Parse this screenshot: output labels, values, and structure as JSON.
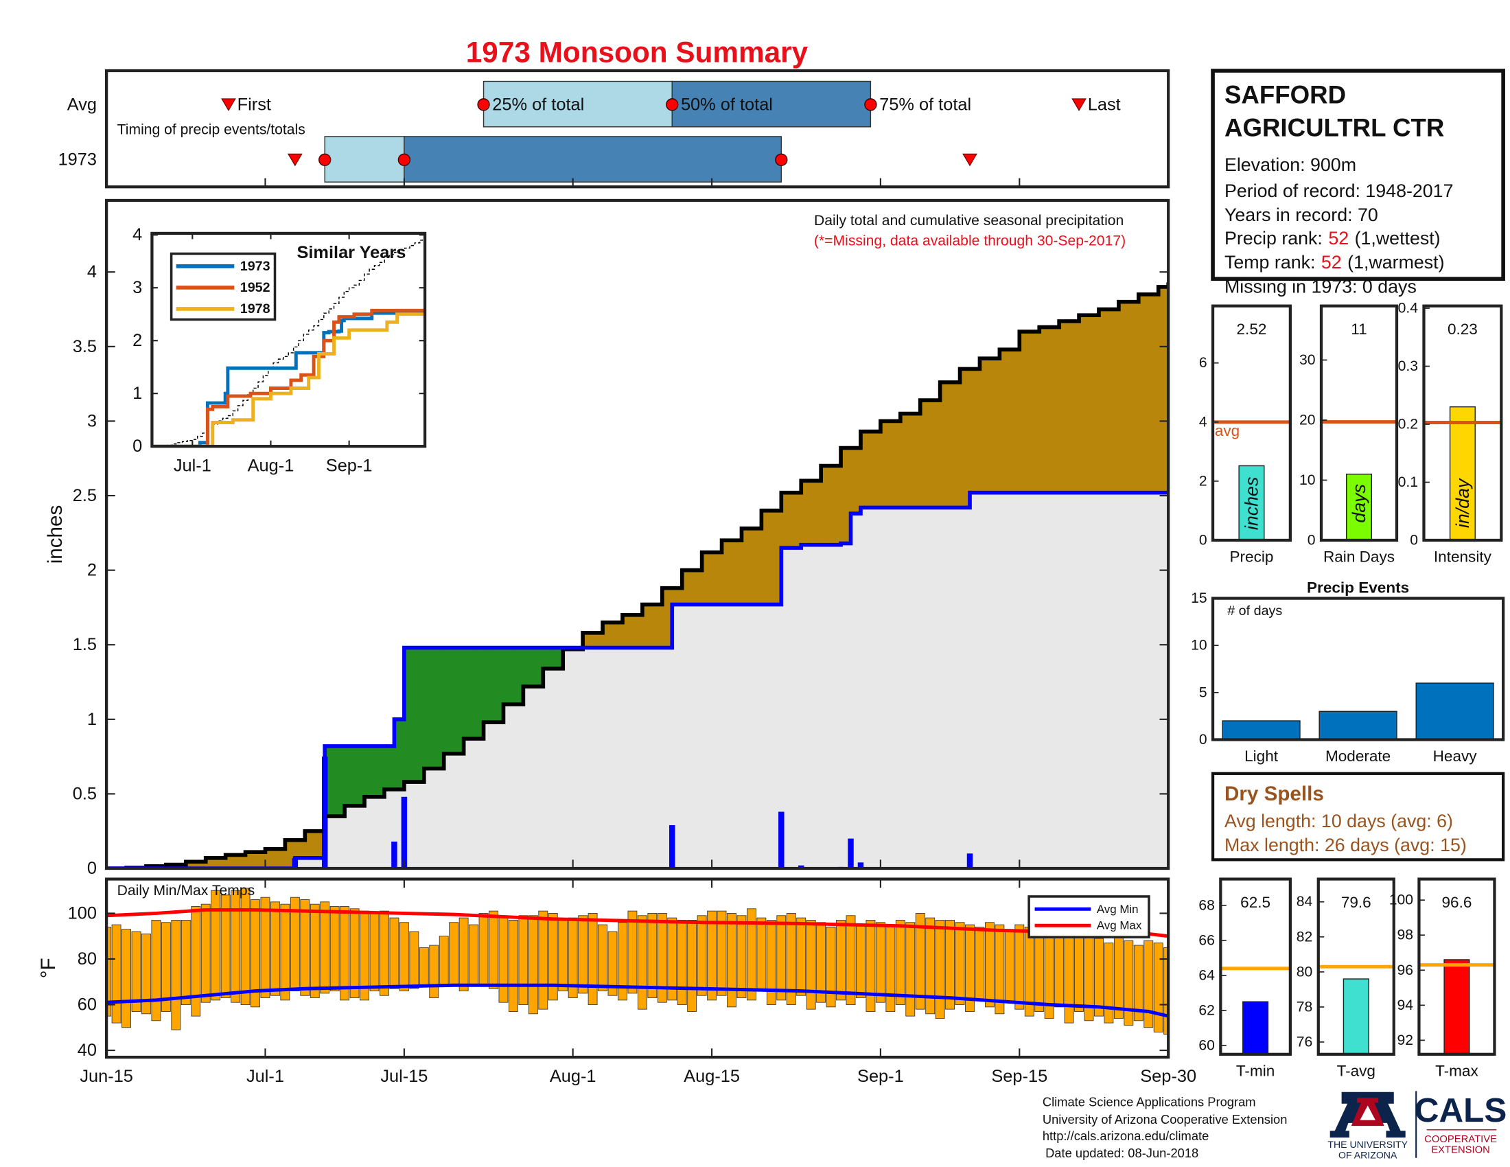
{
  "chart_data": [
    {
      "type": "timing",
      "title": "1973 Monsoon Summary",
      "subtitle": "Timing of precip events/totals",
      "xlim": [
        0,
        107
      ],
      "markers": [
        "First",
        "25% of total",
        "50% of total",
        "75% of total",
        "Last"
      ],
      "series": [
        {
          "name": "Avg",
          "values": [
            12.3,
            38,
            57,
            77,
            98
          ]
        },
        {
          "name": "1973",
          "values": [
            19,
            22,
            30,
            68,
            87
          ]
        }
      ],
      "colors": [
        "#add8e6",
        "#4682b4"
      ],
      "marker_color": "#ff0000"
    },
    {
      "type": "step-area",
      "title": "Daily total and cumulative seasonal precipitation",
      "subtitle": "(*=Missing, data available through 30-Sep-2017)",
      "ylabel": "inches",
      "xlim": [
        0,
        107
      ],
      "ylim": [
        0,
        4.48
      ],
      "yticks": [
        0,
        0.5,
        1,
        1.5,
        2,
        2.5,
        3,
        3.5,
        4
      ],
      "cumulative": {
        "color": "#0000ff",
        "x": [
          0,
          19,
          22,
          29,
          30,
          57,
          68,
          70,
          74,
          75,
          76,
          87
        ],
        "values": [
          0,
          0.07,
          0.82,
          1.0,
          1.48,
          1.77,
          2.15,
          2.17,
          2.18,
          2.38,
          2.42,
          2.52
        ]
      },
      "average": {
        "color": "#000000",
        "x": [
          0,
          2,
          4,
          6,
          8,
          10,
          12,
          14,
          16,
          18,
          20,
          22,
          24,
          26,
          28,
          30,
          32,
          34,
          36,
          38,
          40,
          42,
          44,
          46,
          48,
          50,
          52,
          54,
          56,
          58,
          60,
          62,
          64,
          66,
          68,
          70,
          72,
          74,
          76,
          78,
          80,
          82,
          84,
          86,
          88,
          90,
          92,
          94,
          96,
          98,
          100,
          102,
          104,
          106,
          107
        ],
        "values": [
          0,
          0.005,
          0.015,
          0.025,
          0.045,
          0.07,
          0.09,
          0.11,
          0.13,
          0.19,
          0.25,
          0.35,
          0.42,
          0.48,
          0.53,
          0.58,
          0.67,
          0.77,
          0.87,
          0.98,
          1.1,
          1.22,
          1.34,
          1.47,
          1.58,
          1.65,
          1.7,
          1.77,
          1.88,
          2.0,
          2.12,
          2.2,
          2.28,
          2.4,
          2.52,
          2.6,
          2.7,
          2.82,
          2.93,
          3.0,
          3.05,
          3.14,
          3.26,
          3.35,
          3.42,
          3.48,
          3.6,
          3.63,
          3.67,
          3.71,
          3.75,
          3.8,
          3.85,
          3.9,
          3.93
        ]
      },
      "daily": {
        "color": "#0000ff",
        "x": [
          19,
          22,
          29,
          30,
          57,
          68,
          70,
          74,
          75,
          76,
          87
        ],
        "values": [
          0.07,
          0.75,
          0.18,
          0.48,
          0.29,
          0.38,
          0.02,
          0.01,
          0.2,
          0.04,
          0.1
        ]
      },
      "surplus_color": "#228b22",
      "deficit_color": "#b8860b",
      "below_color": "#e8e8e8"
    },
    {
      "type": "line",
      "title": "Similar Years",
      "xlim": [
        0,
        108
      ],
      "ylim": [
        0,
        4.03
      ],
      "yticks": [
        0,
        1,
        2,
        3,
        4
      ],
      "xticks": [
        {
          "value": 16,
          "label": "Jul-1"
        },
        {
          "value": 47,
          "label": "Aug-1"
        },
        {
          "value": 78,
          "label": "Sep-1"
        }
      ],
      "reference_color": "#000000",
      "series": [
        {
          "name": "1973",
          "color": "#0072bd",
          "x": [
            0,
            19,
            22,
            29,
            30,
            57,
            68,
            70,
            74,
            75,
            76,
            87
          ],
          "values": [
            0,
            0.07,
            0.82,
            1.0,
            1.48,
            1.77,
            2.15,
            2.17,
            2.18,
            2.38,
            2.42,
            2.52
          ]
        },
        {
          "name": "1952",
          "color": "#d95319",
          "x": [
            0,
            22,
            24,
            30,
            39,
            47,
            55,
            59,
            64,
            68,
            72,
            74,
            80,
            87
          ],
          "values": [
            0,
            0.7,
            0.75,
            0.95,
            1.0,
            1.1,
            1.25,
            1.35,
            1.7,
            2.0,
            2.35,
            2.45,
            2.5,
            2.57
          ]
        },
        {
          "name": "1978",
          "color": "#edb120",
          "x": [
            0,
            24,
            32,
            40,
            47,
            55,
            62,
            66,
            72,
            78,
            93,
            97
          ],
          "values": [
            0,
            0.45,
            0.5,
            0.9,
            1.0,
            1.1,
            1.3,
            1.75,
            2.05,
            2.2,
            2.35,
            2.5
          ]
        }
      ]
    },
    {
      "type": "range-bar",
      "title": "Daily Min/Max Temps",
      "ylabel": "°F",
      "xlim": [
        0,
        107
      ],
      "ylim": [
        37,
        115
      ],
      "yticks": [
        40,
        60,
        80,
        100
      ],
      "xticks": [
        {
          "value": 0,
          "label": "Jun-15"
        },
        {
          "value": 16,
          "label": "Jul-1"
        },
        {
          "value": 30,
          "label": "Jul-15"
        },
        {
          "value": 47,
          "label": "Aug-1"
        },
        {
          "value": 61,
          "label": "Aug-15"
        },
        {
          "value": 78,
          "label": "Sep-1"
        },
        {
          "value": 92,
          "label": "Sep-15"
        },
        {
          "value": 107,
          "label": "Sep-30"
        }
      ],
      "color": "#ffa500",
      "legend": "upper right",
      "x": [
        0,
        1,
        2,
        3,
        4,
        5,
        6,
        7,
        8,
        9,
        10,
        11,
        12,
        13,
        14,
        15,
        16,
        17,
        18,
        19,
        20,
        21,
        22,
        23,
        24,
        25,
        26,
        27,
        28,
        29,
        30,
        31,
        32,
        33,
        34,
        35,
        36,
        37,
        38,
        39,
        40,
        41,
        42,
        43,
        44,
        45,
        46,
        47,
        48,
        49,
        50,
        51,
        52,
        53,
        54,
        55,
        56,
        57,
        58,
        59,
        60,
        61,
        62,
        63,
        64,
        65,
        66,
        67,
        68,
        69,
        70,
        71,
        72,
        73,
        74,
        75,
        76,
        77,
        78,
        79,
        80,
        81,
        82,
        83,
        84,
        85,
        86,
        87,
        88,
        89,
        90,
        91,
        92,
        93,
        94,
        95,
        96,
        97,
        98,
        99,
        100,
        101,
        102,
        103,
        104,
        105,
        106,
        107
      ],
      "max": [
        94,
        95,
        93,
        92,
        91,
        97,
        96,
        97,
        97,
        103,
        104,
        110,
        108,
        110,
        111,
        106,
        107,
        105,
        104,
        107,
        106,
        104,
        105,
        103,
        103,
        102,
        101,
        100,
        101,
        98,
        96,
        92,
        85,
        86,
        90,
        96,
        98,
        95,
        100,
        101,
        98,
        97,
        99,
        99,
        101,
        100,
        97,
        98,
        99,
        100,
        95,
        92,
        96,
        101,
        99,
        100,
        100,
        98,
        97,
        97,
        99,
        101,
        101,
        100,
        99,
        102,
        98,
        97,
        99,
        100,
        98,
        97,
        96,
        94,
        97,
        99,
        95,
        97,
        96,
        95,
        97,
        96,
        100,
        98,
        97,
        97,
        96,
        95,
        94,
        96,
        95,
        93,
        95,
        94,
        92,
        90,
        93,
        94,
        92,
        91,
        89,
        87,
        91,
        88,
        86,
        88,
        87,
        85
      ],
      "min": [
        55,
        52,
        50,
        57,
        56,
        53,
        57,
        49,
        60,
        55,
        61,
        62,
        63,
        61,
        60,
        59,
        63,
        64,
        62,
        66,
        64,
        63,
        65,
        66,
        62,
        63,
        62,
        66,
        64,
        67,
        66,
        67,
        68,
        63,
        68,
        69,
        66,
        69,
        68,
        67,
        61,
        57,
        60,
        56,
        58,
        62,
        66,
        63,
        65,
        60,
        66,
        64,
        62,
        65,
        58,
        63,
        61,
        62,
        60,
        57,
        64,
        62,
        64,
        59,
        63,
        62,
        66,
        60,
        62,
        60,
        64,
        58,
        61,
        59,
        62,
        60,
        63,
        57,
        61,
        57,
        60,
        55,
        58,
        56,
        54,
        58,
        60,
        57,
        62,
        59,
        56,
        61,
        58,
        55,
        57,
        54,
        59,
        52,
        57,
        53,
        55,
        52,
        54,
        51,
        53,
        50,
        48,
        47
      ],
      "lines": [
        {
          "name": "Avg Min",
          "color": "#0000ff",
          "x": [
            0,
            5,
            10,
            15,
            20,
            25,
            30,
            35,
            40,
            45,
            50,
            55,
            60,
            65,
            70,
            75,
            80,
            85,
            90,
            95,
            100,
            105,
            107
          ],
          "values": [
            61,
            62,
            64,
            66,
            67,
            67.5,
            68,
            68.5,
            68.5,
            68.5,
            68,
            67.5,
            67,
            66.5,
            66,
            65,
            64,
            63,
            61.5,
            60,
            59,
            57,
            55
          ]
        },
        {
          "name": "Avg Max",
          "color": "#ff0000",
          "x": [
            0,
            5,
            10,
            15,
            20,
            25,
            30,
            35,
            40,
            45,
            50,
            55,
            60,
            65,
            70,
            75,
            80,
            85,
            90,
            95,
            100,
            105,
            107
          ],
          "values": [
            99,
            100,
            101.5,
            101.5,
            101,
            100.5,
            100,
            99.5,
            98.5,
            97.5,
            97,
            96.5,
            96,
            95.8,
            95.5,
            95,
            94.5,
            93.5,
            92.5,
            92,
            91.5,
            91,
            90
          ]
        }
      ]
    },
    {
      "type": "bar",
      "categories": [
        "Precip"
      ],
      "values": [
        2.52
      ],
      "show_values": true,
      "bar_label": "inches",
      "avg": 4,
      "avg_label": "avg",
      "avg_color": "#d95319",
      "color": "#40e0d0",
      "ylim": [
        0,
        7.93
      ],
      "yticks": [
        0,
        2,
        4,
        6
      ]
    },
    {
      "type": "bar",
      "categories": [
        "Rain Days"
      ],
      "values": [
        11
      ],
      "show_values": true,
      "bar_label": "days",
      "avg": 19.7,
      "avg_color": "#d95319",
      "color": "#7cfc00",
      "ylim": [
        0,
        39
      ],
      "yticks": [
        0,
        10,
        20,
        30
      ]
    },
    {
      "type": "bar",
      "categories": [
        "Intensity"
      ],
      "values": [
        0.23
      ],
      "show_values": true,
      "bar_label": "in/day",
      "avg": 0.203,
      "avg_color": "#d95319",
      "color": "#ffd700",
      "ylim": [
        0,
        0.404
      ],
      "yticks": [
        0,
        0.1,
        0.2,
        0.3,
        0.4
      ]
    },
    {
      "type": "bar",
      "title": "Precip Events",
      "ylabel": "# of days",
      "categories": [
        "Light",
        "Moderate",
        "Heavy"
      ],
      "values": [
        2,
        3,
        6
      ],
      "color": "#0072bd",
      "ylim": [
        0,
        15
      ],
      "yticks": [
        0,
        5,
        10,
        15
      ]
    },
    {
      "type": "bar",
      "categories": [
        "T-min"
      ],
      "values": [
        62.5
      ],
      "show_values": true,
      "avg": 64.4,
      "avg_color": "#ffa500",
      "color": "#0000ff",
      "ylim": [
        59.5,
        69.5
      ],
      "yticks": [
        60,
        62,
        64,
        66,
        68
      ]
    },
    {
      "type": "bar",
      "categories": [
        "T-avg"
      ],
      "values": [
        79.6
      ],
      "show_values": true,
      "avg": 80.3,
      "avg_color": "#ffa500",
      "color": "#40e0d0",
      "ylim": [
        75.3,
        85.3
      ],
      "yticks": [
        76,
        78,
        80,
        82,
        84
      ]
    },
    {
      "type": "bar",
      "categories": [
        "T-max"
      ],
      "values": [
        96.6
      ],
      "show_values": true,
      "avg": 96.3,
      "avg_color": "#ffa500",
      "color": "#ff0000",
      "ylim": [
        91.2,
        101.2
      ],
      "yticks": [
        92,
        94,
        96,
        98,
        100
      ]
    }
  ],
  "station": {
    "name": [
      "SAFFORD",
      "AGRICULTRL CTR"
    ],
    "elevation": "Elevation: 900m",
    "period": "Period of record: 1948-2017",
    "years": "Years in record: 70",
    "precip_rank": {
      "label": "Precip rank:",
      "rank": 52,
      "note": "(1,wettest)"
    },
    "temp_rank": {
      "label": "Temp rank:",
      "rank": 52,
      "note": "(1,warmest)"
    },
    "missing": "Missing in 1973: 0 days"
  },
  "dry_spells": {
    "title": "Dry Spells",
    "lines": [
      "Avg length: 10 days (avg: 6)",
      "Max length: 26 days (avg: 15)"
    ]
  },
  "footer": {
    "lines": [
      "Climate Science Applications Program",
      "University of Arizona Cooperative Extension",
      "http://cals.arizona.edu/climate",
      "Date updated: 08-Jun-2018"
    ],
    "logo": {
      "university": [
        "THE UNIVERSITY",
        "OF ARIZONA"
      ],
      "cals": "CALS",
      "extension": [
        "COOPERATIVE",
        "EXTENSION"
      ]
    }
  }
}
